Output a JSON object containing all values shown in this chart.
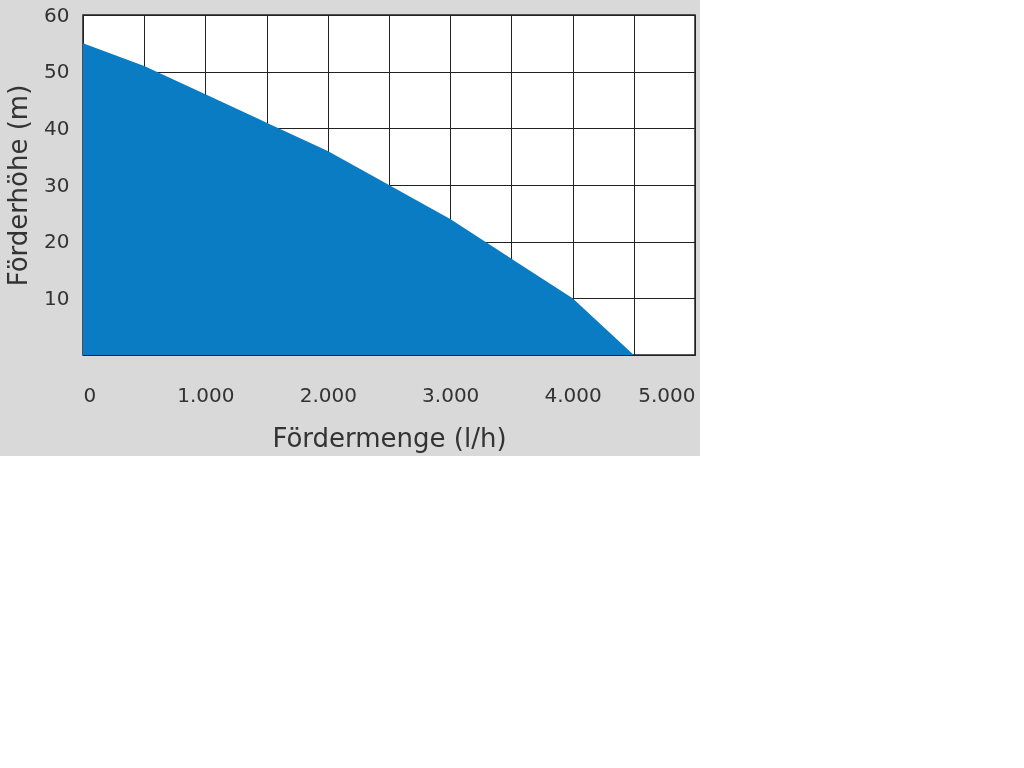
{
  "chart_data": {
    "type": "area",
    "xlabel": "Fördermenge (l/h)",
    "ylabel": "Förderhöhe (m)",
    "x": [
      0,
      500,
      1000,
      1500,
      2000,
      2500,
      3000,
      3500,
      4000,
      4500
    ],
    "series": [
      {
        "color": "#0a7cc3",
        "values": [
          55,
          51,
          46,
          41,
          36,
          30,
          24,
          17,
          10,
          0
        ]
      }
    ],
    "xlim": [
      0,
      5000
    ],
    "xticks": [
      0,
      {
        "value": 500,
        "label": null
      },
      {
        "value": 1000,
        "label": "1.000"
      },
      {
        "value": 1500,
        "label": null
      },
      {
        "value": 2000,
        "label": "2.000"
      },
      {
        "value": 2500,
        "label": null
      },
      {
        "value": 3000,
        "label": "3.000"
      },
      {
        "value": 3500,
        "label": null
      },
      {
        "value": 4000,
        "label": "4.000"
      },
      {
        "value": 4500,
        "label": null
      },
      {
        "value": 5000,
        "label": "5.000"
      }
    ],
    "ylim": [
      0,
      60
    ],
    "yticks": [
      {
        "value": 0,
        "label": null
      },
      10,
      20,
      30,
      40,
      50,
      60
    ],
    "grid": true
  }
}
